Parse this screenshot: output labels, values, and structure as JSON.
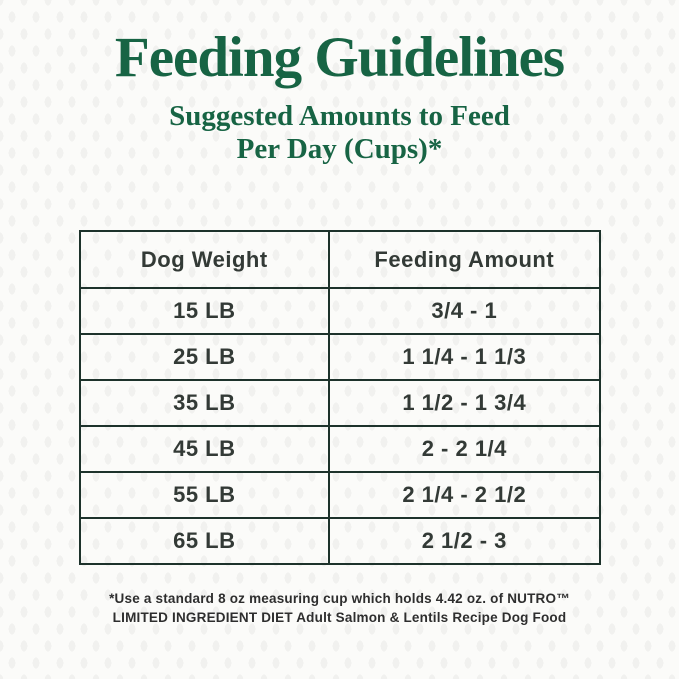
{
  "page": {
    "title": "Feeding Guidelines",
    "subtitle_line1": "Suggested Amounts to Feed",
    "subtitle_line2": "Per Day (Cups)*",
    "footnote_line1": "*Use a standard 8 oz measuring cup which holds 4.42 oz. of NUTRO™",
    "footnote_line2": "LIMITED INGREDIENT DIET Adult Salmon & Lentils Recipe Dog Food"
  },
  "table": {
    "headers": [
      "Dog Weight",
      "Feeding Amount"
    ],
    "rows": [
      [
        "15 LB",
        "3/4 - 1"
      ],
      [
        "25 LB",
        "1 1/4 - 1 1/3"
      ],
      [
        "35 LB",
        "1 1/2 - 1 3/4"
      ],
      [
        "45 LB",
        "2 - 2 1/4"
      ],
      [
        "55 LB",
        "2 1/4 - 2 1/2"
      ],
      [
        "65 LB",
        "2 1/2 - 3"
      ]
    ]
  },
  "colors": {
    "brand_green": "#176444",
    "table_border": "#1d322b",
    "table_text": "#333a36",
    "footnote_text": "#2e2e2e",
    "background": "#fbfbf9"
  },
  "chart_data": {
    "type": "table",
    "title": "Feeding Guidelines",
    "subtitle": "Suggested Amounts to Feed Per Day (Cups)*",
    "columns": [
      "Dog Weight",
      "Feeding Amount"
    ],
    "rows": [
      [
        "15 LB",
        "3/4 - 1"
      ],
      [
        "25 LB",
        "1 1/4 - 1 1/3"
      ],
      [
        "35 LB",
        "1 1/2 - 1 3/4"
      ],
      [
        "45 LB",
        "2 - 2 1/4"
      ],
      [
        "55 LB",
        "2 1/4 - 2 1/2"
      ],
      [
        "65 LB",
        "2 1/2 - 3"
      ]
    ],
    "rows_numeric": [
      {
        "dog_weight_lb": 15,
        "cups_min": 0.75,
        "cups_max": 1.0
      },
      {
        "dog_weight_lb": 25,
        "cups_min": 1.25,
        "cups_max": 1.333
      },
      {
        "dog_weight_lb": 35,
        "cups_min": 1.5,
        "cups_max": 1.75
      },
      {
        "dog_weight_lb": 45,
        "cups_min": 2.0,
        "cups_max": 2.25
      },
      {
        "dog_weight_lb": 55,
        "cups_min": 2.25,
        "cups_max": 2.5
      },
      {
        "dog_weight_lb": 65,
        "cups_min": 2.5,
        "cups_max": 3.0
      }
    ],
    "footnote": "*Use a standard 8 oz measuring cup which holds 4.42 oz. of NUTRO™ LIMITED INGREDIENT DIET Adult Salmon & Lentils Recipe Dog Food"
  }
}
